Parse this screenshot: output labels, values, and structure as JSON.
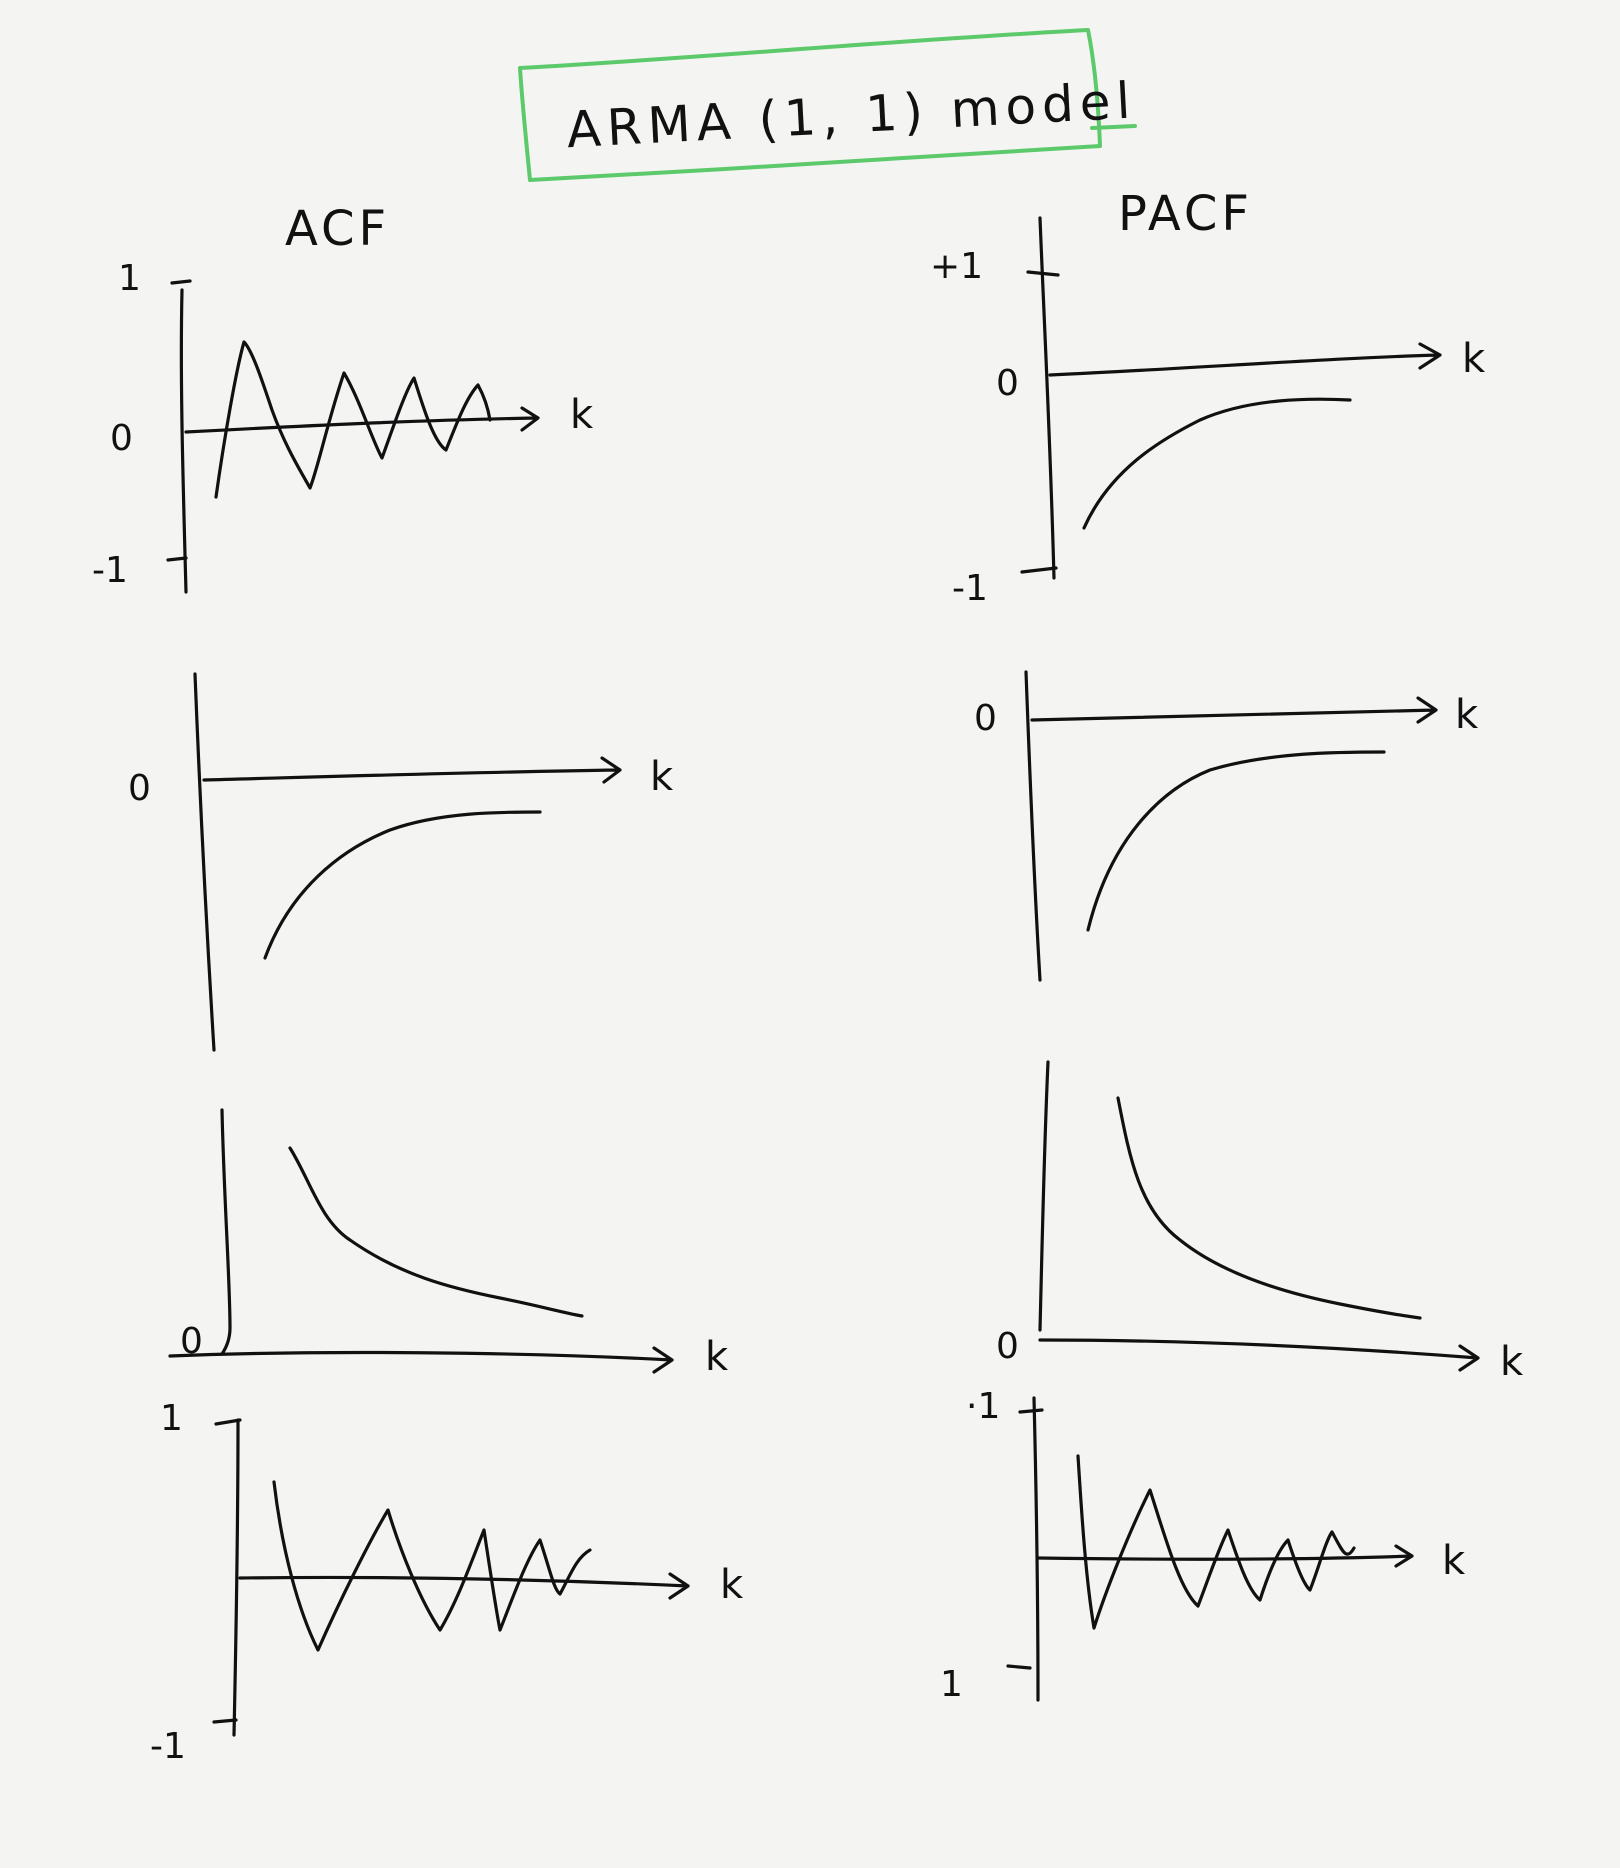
{
  "title": "ARMA (1, 1) model",
  "accent_color": "#5cc96a",
  "ink_color": "#111111",
  "columns": [
    "ACF",
    "PACF"
  ],
  "axis_symbol": "k",
  "panels": [
    {
      "id": "acf-1",
      "column": "ACF",
      "y_top": "1",
      "y_zero": "0",
      "y_bottom": "-1",
      "shape": "damped oscillation"
    },
    {
      "id": "pacf-1",
      "column": "PACF",
      "y_top": "+1",
      "y_zero": "0",
      "y_bottom": "-1",
      "shape": "negative exponential decay"
    },
    {
      "id": "acf-2",
      "column": "ACF",
      "y_zero": "0",
      "shape": "negative exponential decay"
    },
    {
      "id": "pacf-2",
      "column": "PACF",
      "y_zero": "0",
      "shape": "negative exponential decay"
    },
    {
      "id": "acf-3",
      "column": "ACF",
      "y_zero": "0",
      "shape": "positive exponential decay"
    },
    {
      "id": "pacf-3",
      "column": "PACF",
      "y_zero": "0",
      "shape": "positive exponential decay"
    },
    {
      "id": "acf-4",
      "column": "ACF",
      "y_top": "1",
      "y_bottom": "-1",
      "shape": "damped oscillation"
    },
    {
      "id": "pacf-4",
      "column": "PACF",
      "y_top": "·1",
      "y_bottom": "1",
      "shape": "damped oscillation"
    }
  ]
}
